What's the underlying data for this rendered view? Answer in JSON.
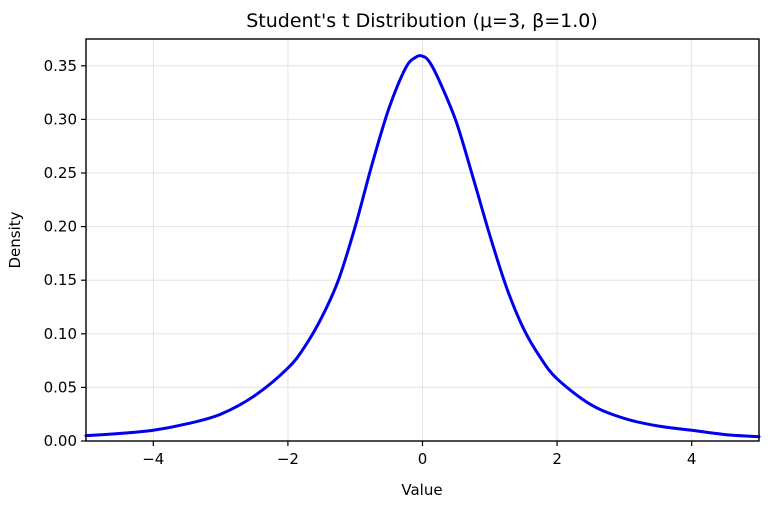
{
  "chart_data": {
    "type": "line",
    "title": "Student's t Distribution (μ=3, β=1.0)",
    "xlabel": "Value",
    "ylabel": "Density",
    "xlim": [
      -5,
      5
    ],
    "ylim": [
      0,
      0.375
    ],
    "grid": true,
    "line_color": "#0000ee",
    "x_ticks": [
      {
        "value": -4,
        "label": "−4"
      },
      {
        "value": -2,
        "label": "−2"
      },
      {
        "value": 0,
        "label": "0"
      },
      {
        "value": 2,
        "label": "2"
      },
      {
        "value": 4,
        "label": "4"
      }
    ],
    "y_ticks": [
      {
        "value": 0.0,
        "label": "0.00"
      },
      {
        "value": 0.05,
        "label": "0.05"
      },
      {
        "value": 0.1,
        "label": "0.10"
      },
      {
        "value": 0.15,
        "label": "0.15"
      },
      {
        "value": 0.2,
        "label": "0.20"
      },
      {
        "value": 0.25,
        "label": "0.25"
      },
      {
        "value": 0.3,
        "label": "0.30"
      },
      {
        "value": 0.35,
        "label": "0.35"
      }
    ],
    "series": [
      {
        "x": [
          -5.0,
          -4.5,
          -4.0,
          -3.5,
          -3.0,
          -2.5,
          -2.0,
          -1.75,
          -1.5,
          -1.25,
          -1.0,
          -0.75,
          -0.5,
          -0.25,
          -0.1,
          0.0,
          0.1,
          0.25,
          0.5,
          0.75,
          1.0,
          1.25,
          1.5,
          1.75,
          2.0,
          2.5,
          3.0,
          3.5,
          4.0,
          4.5,
          5.0
        ],
        "y": [
          0.005,
          0.007,
          0.01,
          0.016,
          0.025,
          0.042,
          0.068,
          0.088,
          0.115,
          0.15,
          0.2,
          0.258,
          0.31,
          0.348,
          0.358,
          0.359,
          0.354,
          0.336,
          0.298,
          0.246,
          0.192,
          0.143,
          0.105,
          0.078,
          0.058,
          0.034,
          0.021,
          0.014,
          0.01,
          0.006,
          0.004
        ]
      }
    ]
  }
}
